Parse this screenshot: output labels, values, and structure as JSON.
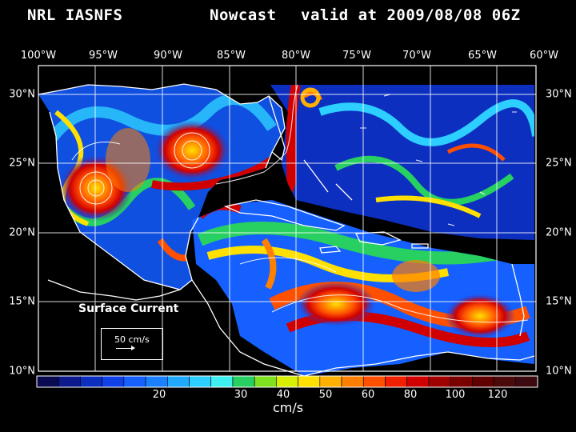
{
  "header": {
    "model": "NRL IASNFS",
    "product": "Nowcast",
    "valid": "valid at 2009/08/08 06Z"
  },
  "axes": {
    "longitude_labels": [
      "100°W",
      "95°W",
      "90°W",
      "85°W",
      "80°W",
      "75°W",
      "70°W",
      "65°W",
      "60°W"
    ],
    "latitude_labels": [
      "30°N",
      "25°N",
      "20°N",
      "15°N",
      "10°N"
    ]
  },
  "legend": {
    "field_name": "Surface Current",
    "reference_vector": "50 cm/s"
  },
  "colorbar": {
    "units": "cm/s",
    "tick_labels": [
      "20",
      "30",
      "40",
      "50",
      "60",
      "80",
      "100",
      "120"
    ],
    "colors": [
      "#0a0a50",
      "#0c1a8c",
      "#0d2fc0",
      "#1040e6",
      "#1560ff",
      "#1a80ff",
      "#20a8ff",
      "#2ccfff",
      "#3ff0f0",
      "#27d060",
      "#7fe020",
      "#d8f000",
      "#ffe000",
      "#ffb000",
      "#ff8000",
      "#ff5000",
      "#f02000",
      "#d00000",
      "#a00000",
      "#7a0000",
      "#600000",
      "#4a0a0a",
      "#3a0a10"
    ]
  },
  "map_colors": {
    "land": "#000000",
    "coastline": "#ffffff",
    "gridline": "#ffffff"
  }
}
